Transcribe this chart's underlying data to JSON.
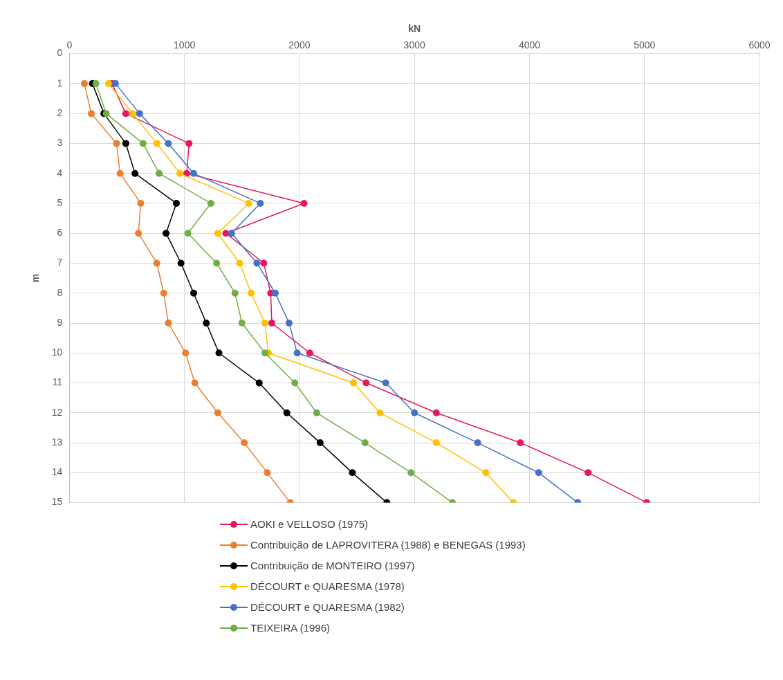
{
  "chart_data": {
    "type": "line",
    "xlabel": "kN",
    "ylabel": "m",
    "xlim": [
      0,
      6000
    ],
    "xticks": [
      0,
      1000,
      2000,
      3000,
      4000,
      5000,
      6000
    ],
    "ylim": [
      15,
      0
    ],
    "yticks": [
      0,
      1,
      2,
      3,
      4,
      5,
      6,
      7,
      8,
      9,
      10,
      11,
      12,
      13,
      14,
      15
    ],
    "grid": true,
    "legend": "bottom",
    "marker": "circle",
    "series": [
      {
        "name": "AOKI e VELLOSO (1975)",
        "color": "#e8175d",
        "x": [
          370,
          490,
          1040,
          1020,
          2040,
          1360,
          1690,
          1750,
          1760,
          2090,
          2580,
          3190,
          3920,
          4510,
          5020
        ],
        "values": [
          1,
          2,
          3,
          4,
          5,
          6,
          7,
          8,
          9,
          10,
          11,
          12,
          13,
          14,
          15
        ]
      },
      {
        "name": "Contribuição de LAPROVITERA (1988) e BENEGAS (1993)",
        "color": "#ed7d31",
        "x": [
          130,
          190,
          410,
          440,
          620,
          600,
          760,
          820,
          860,
          1010,
          1090,
          1290,
          1520,
          1720,
          1920
        ],
        "values": [
          1,
          2,
          3,
          4,
          5,
          6,
          7,
          8,
          9,
          10,
          11,
          12,
          13,
          14,
          15
        ]
      },
      {
        "name": "Contribuição de MONTEIRO (1997)",
        "color": "#000000",
        "x": [
          200,
          300,
          490,
          570,
          930,
          840,
          970,
          1080,
          1190,
          1300,
          1650,
          1890,
          2180,
          2460,
          2760
        ],
        "values": [
          1,
          2,
          3,
          4,
          5,
          6,
          7,
          8,
          9,
          10,
          11,
          12,
          13,
          14,
          15
        ]
      },
      {
        "name": "DÉCOURT e QUARESMA (1978)",
        "color": "#ffc000",
        "x": [
          340,
          550,
          760,
          960,
          1560,
          1290,
          1480,
          1580,
          1700,
          1730,
          2470,
          2700,
          3190,
          3620,
          3860
        ],
        "values": [
          1,
          2,
          3,
          4,
          5,
          6,
          7,
          8,
          9,
          10,
          11,
          12,
          13,
          14,
          15
        ]
      },
      {
        "name": "DÉCOURT e QUARESMA (1982)",
        "color": "#4472c4",
        "x": [
          400,
          610,
          860,
          1080,
          1660,
          1410,
          1630,
          1790,
          1910,
          1980,
          2750,
          3000,
          3550,
          4080,
          4420
        ],
        "values": [
          1,
          2,
          3,
          4,
          5,
          6,
          7,
          8,
          9,
          10,
          11,
          12,
          13,
          14,
          15
        ]
      },
      {
        "name": "TEIXEIRA (1996)",
        "color": "#70ad47",
        "x": [
          230,
          320,
          640,
          780,
          1230,
          1030,
          1280,
          1440,
          1500,
          1700,
          1960,
          2150,
          2570,
          2970,
          3330
        ],
        "values": [
          1,
          2,
          3,
          4,
          5,
          6,
          7,
          8,
          9,
          10,
          11,
          12,
          13,
          14,
          15
        ]
      }
    ]
  }
}
